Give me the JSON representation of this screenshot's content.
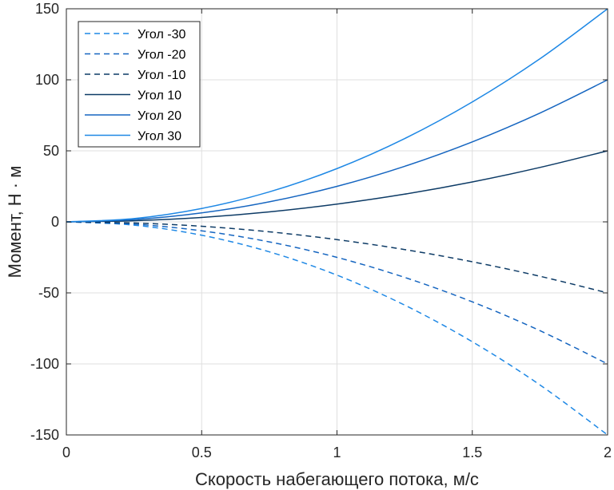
{
  "chart_data": {
    "type": "line",
    "xlabel": "Скорость набегающего потока, м/с",
    "ylabel": "Момент, Н · м",
    "xlim": [
      0,
      2
    ],
    "ylim": [
      -150,
      150
    ],
    "xticks": [
      0,
      0.5,
      1,
      1.5,
      2
    ],
    "xtick_labels": [
      "0",
      "0.5",
      "1",
      "1.5",
      "2"
    ],
    "yticks": [
      -150,
      -100,
      -50,
      0,
      50,
      100,
      150
    ],
    "ytick_labels": [
      "-150",
      "-100",
      "-50",
      "0",
      "50",
      "100",
      "150"
    ],
    "grid": true,
    "legend_position": "top-left",
    "series": [
      {
        "name": "Угол -30",
        "style": "dashed",
        "color": "#1E88E5",
        "x": [
          0,
          0.25,
          0.5,
          0.75,
          1,
          1.25,
          1.5,
          1.75,
          2
        ],
        "y": [
          0,
          -2.3,
          -9.4,
          -21.1,
          -37.5,
          -58.6,
          -84.4,
          -114.8,
          -150
        ]
      },
      {
        "name": "Угол -20",
        "style": "dashed",
        "color": "#1565C0",
        "x": [
          0,
          0.25,
          0.5,
          0.75,
          1,
          1.25,
          1.5,
          1.75,
          2
        ],
        "y": [
          0,
          -1.6,
          -6.3,
          -14.1,
          -25,
          -39.1,
          -56.3,
          -76.6,
          -100
        ]
      },
      {
        "name": "Угол -10",
        "style": "dashed",
        "color": "#0D3B66",
        "x": [
          0,
          0.25,
          0.5,
          0.75,
          1,
          1.25,
          1.5,
          1.75,
          2
        ],
        "y": [
          0,
          -0.8,
          -3.1,
          -7,
          -12.5,
          -19.5,
          -28.1,
          -38.3,
          -50
        ]
      },
      {
        "name": "Угол 10",
        "style": "solid",
        "color": "#0D3B66",
        "x": [
          0,
          0.25,
          0.5,
          0.75,
          1,
          1.25,
          1.5,
          1.75,
          2
        ],
        "y": [
          0,
          0.8,
          3.1,
          7,
          12.5,
          19.5,
          28.1,
          38.3,
          50
        ]
      },
      {
        "name": "Угол 20",
        "style": "solid",
        "color": "#1565C0",
        "x": [
          0,
          0.25,
          0.5,
          0.75,
          1,
          1.25,
          1.5,
          1.75,
          2
        ],
        "y": [
          0,
          1.6,
          6.3,
          14.1,
          25,
          39.1,
          56.3,
          76.6,
          100
        ]
      },
      {
        "name": "Угол 30",
        "style": "solid",
        "color": "#1E88E5",
        "x": [
          0,
          0.25,
          0.5,
          0.75,
          1,
          1.25,
          1.5,
          1.75,
          2
        ],
        "y": [
          0,
          2.3,
          9.4,
          21.1,
          37.5,
          58.6,
          84.4,
          114.8,
          150
        ]
      }
    ]
  }
}
